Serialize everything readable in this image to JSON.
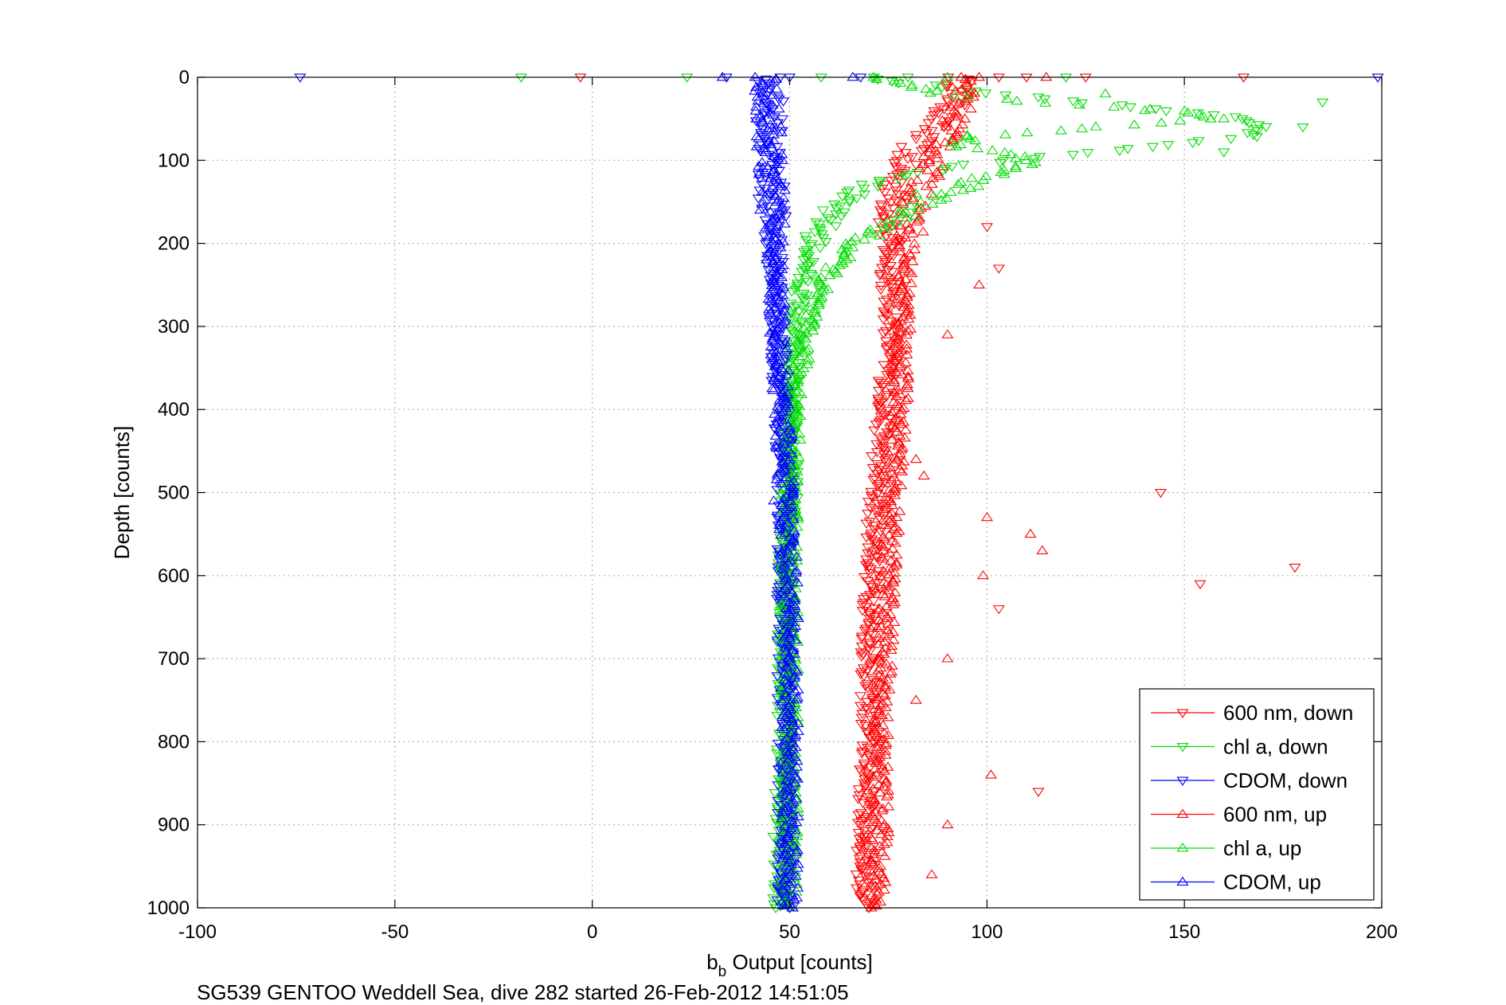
{
  "chart_data": {
    "type": "scatter",
    "title": "",
    "xlabel_main": "b",
    "xlabel_sub": "b",
    "xlabel_rest": " Output [counts]",
    "ylabel": "Depth [counts]",
    "caption": "SG539 GENTOO Weddell Sea, dive 282 started 26-Feb-2012 14:51:05",
    "xlim": [
      -100,
      200
    ],
    "ylim": [
      0,
      1000
    ],
    "y_reversed": true,
    "grid": true,
    "legend_position": "bottom-right",
    "x_ticks": [
      -100,
      -50,
      0,
      50,
      100,
      150,
      200
    ],
    "y_ticks": [
      0,
      100,
      200,
      300,
      400,
      500,
      600,
      700,
      800,
      900,
      1000
    ],
    "x_tick_labels": [
      "-100",
      "-50",
      "0",
      "50",
      "100",
      "150",
      "200"
    ],
    "y_tick_labels": [
      "0",
      "100",
      "200",
      "300",
      "400",
      "500",
      "600",
      "700",
      "800",
      "900",
      "1000"
    ],
    "series": [
      {
        "name": "600 nm, down",
        "color": "#ff0000",
        "marker": "triangle-down",
        "profile": [
          [
            0,
            93
          ],
          [
            20,
            93
          ],
          [
            40,
            90
          ],
          [
            60,
            86
          ],
          [
            80,
            82
          ],
          [
            100,
            79
          ],
          [
            120,
            77
          ],
          [
            150,
            76
          ],
          [
            200,
            75
          ],
          [
            250,
            75
          ],
          [
            300,
            76
          ],
          [
            350,
            75
          ],
          [
            400,
            74
          ],
          [
            450,
            73
          ],
          [
            500,
            72
          ],
          [
            600,
            71
          ],
          [
            700,
            70
          ],
          [
            800,
            70
          ],
          [
            900,
            69
          ],
          [
            1000,
            69
          ]
        ],
        "outliers": [
          [
            0,
            -3
          ],
          [
            0,
            103
          ],
          [
            0,
            110
          ],
          [
            0,
            125
          ],
          [
            0,
            165
          ],
          [
            180,
            100
          ],
          [
            230,
            103
          ],
          [
            500,
            144
          ],
          [
            590,
            178
          ],
          [
            610,
            154
          ],
          [
            640,
            103
          ],
          [
            860,
            113
          ]
        ]
      },
      {
        "name": "chl a, down",
        "color": "#00dd00",
        "marker": "triangle-down",
        "profile": [
          [
            0,
            70
          ],
          [
            5,
            75
          ],
          [
            10,
            85
          ],
          [
            20,
            100
          ],
          [
            30,
            125
          ],
          [
            40,
            145
          ],
          [
            50,
            165
          ],
          [
            60,
            172
          ],
          [
            70,
            168
          ],
          [
            80,
            150
          ],
          [
            90,
            130
          ],
          [
            100,
            105
          ],
          [
            110,
            90
          ],
          [
            120,
            80
          ],
          [
            130,
            70
          ],
          [
            150,
            62
          ],
          [
            200,
            56
          ],
          [
            250,
            53
          ],
          [
            300,
            51
          ],
          [
            400,
            50
          ],
          [
            500,
            50
          ],
          [
            600,
            49
          ],
          [
            700,
            49
          ],
          [
            800,
            49
          ],
          [
            900,
            48
          ],
          [
            1000,
            48
          ]
        ],
        "outliers": [
          [
            0,
            -18
          ],
          [
            0,
            24
          ],
          [
            0,
            58
          ],
          [
            0,
            80
          ],
          [
            0,
            120
          ],
          [
            30,
            185
          ],
          [
            60,
            180
          ],
          [
            90,
            160
          ]
        ]
      },
      {
        "name": "CDOM, down",
        "color": "#0000ff",
        "marker": "triangle-down",
        "profile": [
          [
            0,
            45
          ],
          [
            100,
            45
          ],
          [
            200,
            46
          ],
          [
            300,
            47
          ],
          [
            400,
            48
          ],
          [
            500,
            49
          ],
          [
            600,
            49
          ],
          [
            700,
            49
          ],
          [
            800,
            49
          ],
          [
            900,
            49
          ],
          [
            1000,
            49
          ]
        ],
        "outliers": [
          [
            0,
            -74
          ],
          [
            0,
            34
          ],
          [
            0,
            50
          ],
          [
            0,
            68
          ],
          [
            0,
            199
          ]
        ]
      },
      {
        "name": "600 nm, up",
        "color": "#ff0000",
        "marker": "triangle-up",
        "profile": [
          [
            0,
            95
          ],
          [
            20,
            94
          ],
          [
            50,
            92
          ],
          [
            80,
            90
          ],
          [
            100,
            86
          ],
          [
            150,
            82
          ],
          [
            200,
            80
          ],
          [
            250,
            79
          ],
          [
            300,
            79
          ],
          [
            350,
            78
          ],
          [
            400,
            78
          ],
          [
            450,
            77
          ],
          [
            500,
            76
          ],
          [
            600,
            75
          ],
          [
            700,
            74
          ],
          [
            800,
            73
          ],
          [
            900,
            73
          ],
          [
            1000,
            72
          ]
        ],
        "outliers": [
          [
            0,
            98
          ],
          [
            0,
            115
          ],
          [
            250,
            98
          ],
          [
            310,
            90
          ],
          [
            460,
            82
          ],
          [
            480,
            84
          ],
          [
            530,
            100
          ],
          [
            550,
            111
          ],
          [
            570,
            114
          ],
          [
            600,
            99
          ],
          [
            700,
            90
          ],
          [
            750,
            82
          ],
          [
            840,
            101
          ],
          [
            900,
            90
          ],
          [
            960,
            86
          ]
        ]
      },
      {
        "name": "chl a, up",
        "color": "#00dd00",
        "marker": "triangle-up",
        "profile": [
          [
            0,
            72
          ],
          [
            10,
            80
          ],
          [
            20,
            90
          ],
          [
            30,
            110
          ],
          [
            40,
            150
          ],
          [
            50,
            155
          ],
          [
            60,
            130
          ],
          [
            70,
            100
          ],
          [
            80,
            90
          ],
          [
            100,
            112
          ],
          [
            120,
            100
          ],
          [
            150,
            85
          ],
          [
            200,
            66
          ],
          [
            250,
            58
          ],
          [
            300,
            54
          ],
          [
            400,
            51
          ],
          [
            500,
            50
          ],
          [
            600,
            50
          ],
          [
            700,
            50
          ],
          [
            800,
            50
          ],
          [
            900,
            50
          ],
          [
            1000,
            50
          ]
        ],
        "outliers": [
          [
            0,
            90
          ],
          [
            20,
            130
          ],
          [
            40,
            140
          ],
          [
            50,
            160
          ],
          [
            70,
            95
          ],
          [
            140,
            82
          ]
        ]
      },
      {
        "name": "CDOM, up",
        "color": "#0000ff",
        "marker": "triangle-up",
        "profile": [
          [
            0,
            44
          ],
          [
            100,
            45
          ],
          [
            200,
            46
          ],
          [
            300,
            47
          ],
          [
            400,
            48
          ],
          [
            500,
            49
          ],
          [
            600,
            50
          ],
          [
            700,
            50
          ],
          [
            800,
            50
          ],
          [
            900,
            50
          ],
          [
            1000,
            50
          ]
        ],
        "outliers": [
          [
            0,
            33
          ],
          [
            0,
            66
          ],
          [
            510,
            46
          ]
        ]
      }
    ]
  }
}
